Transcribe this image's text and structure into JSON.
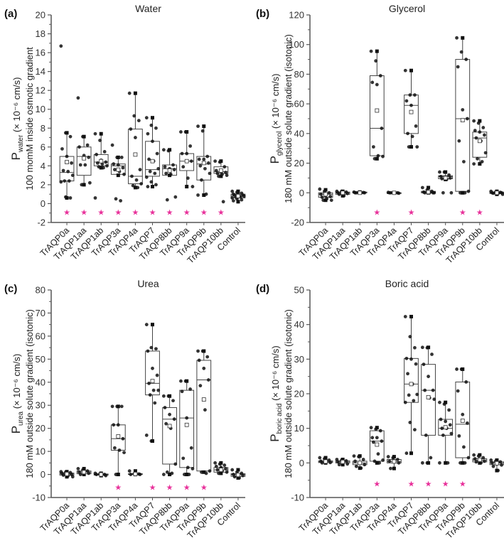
{
  "chart_data": [
    {
      "type": "box",
      "panel": "(a)",
      "title": "Water",
      "ylabel_main": "P",
      "ylabel_sub": "water",
      "ylabel_rest": " (× 10⁻⁶ cm/s)",
      "ylabel_line2": "100 momM inside osmotic gradient",
      "ylim": [
        -2,
        20
      ],
      "yticks": [
        -2,
        0,
        2,
        4,
        6,
        8,
        10,
        12,
        14,
        16,
        18,
        20
      ],
      "categories": [
        "TrAQP0a",
        "TrAQP1aa",
        "TrAQP1ab",
        "TrAQP3a",
        "TrAQP4a",
        "TrAQP7",
        "TrAQP8bb",
        "TrAQP9a",
        "TrAQP9b",
        "TrAQP10bb",
        "Control"
      ],
      "significant": [
        true,
        true,
        true,
        true,
        true,
        true,
        true,
        true,
        true,
        true,
        false
      ],
      "star_y": -0.9,
      "boxes": [
        {
          "min": 0.6,
          "q1": 2.4,
          "median": 3.3,
          "q3": 5.0,
          "max": 7.5,
          "mean": 4.4,
          "points": [
            16.7,
            7.5,
            7.1,
            5.8,
            5.0,
            4.3,
            3.5,
            3.4,
            3.0,
            2.4,
            2.4,
            2.3,
            0.7,
            0.6
          ]
        },
        {
          "min": 2.0,
          "q1": 3.0,
          "median": 5.0,
          "q3": 6.0,
          "max": 7.1,
          "mean": 4.8,
          "points": [
            11.2,
            7.1,
            6.2,
            6.0,
            5.1,
            4.9,
            4.1,
            4.1,
            2.2,
            2.0
          ]
        },
        {
          "min": 3.8,
          "q1": 4.0,
          "median": 4.4,
          "q3": 5.2,
          "max": 7.4,
          "mean": 4.5,
          "points": [
            7.4,
            6.7,
            5.5,
            5.2,
            4.6,
            4.4,
            4.3,
            4.2,
            4.0,
            3.9,
            3.8,
            0.6
          ]
        },
        {
          "min": 3.0,
          "q1": 3.1,
          "median": 4.0,
          "q3": 4.2,
          "max": 4.9,
          "mean": 3.6,
          "points": [
            6.2,
            4.9,
            4.9,
            4.2,
            4.1,
            3.8,
            3.6,
            3.4,
            3.1,
            0.5,
            0.3
          ]
        },
        {
          "min": 1.7,
          "q1": 2.1,
          "median": 2.9,
          "q3": 7.9,
          "max": 11.7,
          "mean": 5.2,
          "points": [
            11.7,
            9.3,
            8.8,
            7.9,
            7.0,
            3.6,
            2.9,
            2.5,
            2.1,
            1.9,
            1.7
          ]
        },
        {
          "min": 1.8,
          "q1": 2.9,
          "median": 3.6,
          "q3": 6.6,
          "max": 9.1,
          "mean": 4.5,
          "points": [
            9.1,
            8.3,
            8.0,
            7.4,
            6.6,
            5.3,
            4.7,
            4.5,
            3.7,
            3.4,
            3.2,
            2.8,
            2.3,
            2.0,
            1.8
          ]
        },
        {
          "min": 3.0,
          "q1": 3.0,
          "median": 3.7,
          "q3": 4.1,
          "max": 5.7,
          "mean": 3.5,
          "points": [
            5.7,
            5.6,
            4.1,
            3.9,
            3.7,
            3.6,
            3.2,
            3.1,
            0.7,
            0.4
          ]
        },
        {
          "min": 1.8,
          "q1": 3.5,
          "median": 4.5,
          "q3": 5.3,
          "max": 7.6,
          "mean": 4.5,
          "points": [
            7.6,
            7.6,
            6.1,
            5.3,
            5.3,
            4.5,
            3.9,
            2.7,
            1.8
          ]
        },
        {
          "min": 0.9,
          "q1": 2.5,
          "median": 4.2,
          "q3": 5.0,
          "max": 8.2,
          "mean": 4.3,
          "points": [
            8.2,
            7.7,
            5.0,
            4.7,
            4.7,
            4.3,
            4.0,
            3.7,
            3.2,
            2.5,
            1.0,
            0.9
          ]
        },
        {
          "min": 2.9,
          "q1": 3.2,
          "median": 3.4,
          "q3": 3.9,
          "max": 4.5,
          "mean": 3.5,
          "points": [
            4.5,
            4.4,
            3.9,
            3.5,
            3.4,
            3.3,
            3.2,
            3.1,
            3.0,
            2.9,
            0.2
          ]
        },
        {
          "min": 0.2,
          "q1": 0.6,
          "median": 0.8,
          "q3": 1.0,
          "max": 1.3,
          "mean": 0.8,
          "points": [
            1.3,
            1.2,
            1.1,
            1.0,
            1.0,
            0.9,
            0.9,
            0.8,
            0.8,
            0.7,
            0.7,
            0.6,
            0.5,
            0.4,
            0.3,
            0.2
          ]
        }
      ]
    },
    {
      "type": "box",
      "panel": "(b)",
      "title": "Glycerol",
      "ylabel_main": "P",
      "ylabel_sub": "glycerol",
      "ylabel_rest": " (× 10⁻⁶ cm/s)",
      "ylabel_line2": "180 mM outside solute gradient (isotonic)",
      "ylim": [
        -20,
        120
      ],
      "yticks": [
        -20,
        0,
        20,
        40,
        60,
        80,
        100,
        120
      ],
      "categories": [
        "TrAQP0a",
        "TrAQP1aa",
        "TrAQP1ab",
        "TrAQP3a",
        "TrAQP4a",
        "TrAQP7",
        "TrAQP8bb",
        "TrAQP9a",
        "TrAQP9b",
        "TrAQP10bb",
        "Control"
      ],
      "significant": [
        false,
        false,
        false,
        true,
        false,
        true,
        false,
        false,
        true,
        true,
        false
      ],
      "star_y": -13,
      "boxes": [
        {
          "min": -5,
          "q1": -3,
          "median": -1,
          "q3": 0,
          "max": 2,
          "mean": -1,
          "points": [
            2.5,
            1,
            0,
            -1,
            -2,
            -2.5,
            -3,
            -4,
            -5,
            -5
          ]
        },
        {
          "min": -2,
          "q1": -1,
          "median": 0,
          "q3": 0.5,
          "max": 1,
          "mean": 0,
          "points": [
            1,
            1,
            0.5,
            0,
            0,
            -0.5,
            -1,
            -2
          ]
        },
        {
          "min": 0,
          "q1": 0,
          "median": 0,
          "q3": 0.5,
          "max": 0.5,
          "mean": 0,
          "points": [
            0.5,
            0.3,
            0.2,
            0,
            0,
            0,
            0,
            0
          ]
        },
        {
          "min": 23,
          "q1": 25,
          "median": 43.5,
          "q3": 79,
          "max": 95.5,
          "mean": 55.5,
          "points": [
            95.5,
            89,
            79,
            74.5,
            73,
            43.5,
            31,
            25,
            24.5,
            23
          ]
        },
        {
          "min": 0,
          "q1": 0,
          "median": 0,
          "q3": 0,
          "max": 0,
          "mean": 0,
          "points": [
            0.3,
            0.2,
            0,
            0,
            -0.2,
            -0.3,
            0,
            0
          ]
        },
        {
          "min": 31,
          "q1": 40,
          "median": 59,
          "q3": 66,
          "max": 82.5,
          "mean": 54.5,
          "points": [
            82.5,
            66,
            66,
            62,
            59,
            45,
            40,
            38,
            31,
            31
          ]
        },
        {
          "min": 0,
          "q1": 0,
          "median": 0.5,
          "q3": 1,
          "max": 3.5,
          "mean": 0.5,
          "points": [
            3.5,
            2,
            1,
            0.5,
            0,
            0,
            0,
            0,
            0
          ]
        },
        {
          "min": 9,
          "q1": 9.5,
          "median": 11,
          "q3": 11.5,
          "max": 14,
          "mean": 10,
          "points": [
            14,
            14,
            12,
            11,
            10.5,
            10,
            9.5,
            9,
            0,
            0
          ]
        },
        {
          "min": 0,
          "q1": 1,
          "median": 50,
          "q3": 90,
          "max": 104.5,
          "mean": 49,
          "points": [
            104.5,
            95,
            90,
            85,
            56,
            50,
            35,
            21,
            1,
            0,
            0
          ]
        },
        {
          "min": 19.5,
          "q1": 24,
          "median": 37,
          "q3": 41,
          "max": 48.5,
          "mean": 35,
          "points": [
            48.5,
            47,
            44,
            42,
            41,
            39,
            37,
            35,
            27,
            23,
            21,
            19.5
          ]
        },
        {
          "min": -1,
          "q1": -0.5,
          "median": 0,
          "q3": 0.5,
          "max": 1,
          "mean": 0,
          "points": [
            1,
            0.5,
            0.3,
            0,
            0,
            0,
            -0.3,
            -0.5,
            -1
          ]
        }
      ]
    },
    {
      "type": "box",
      "panel": "(c)",
      "title": "Urea",
      "ylabel_main": "P",
      "ylabel_sub": "urea",
      "ylabel_rest": " (× 10⁻⁶ cm/s)",
      "ylabel_line2": "180 mM outside solute gradient (isotonic)",
      "ylim": [
        -10,
        80
      ],
      "yticks": [
        -10,
        0,
        10,
        20,
        30,
        40,
        50,
        60,
        70,
        80
      ],
      "categories": [
        "TrAQP0a",
        "TrAQP1aa",
        "TrAQP1ab",
        "TrAQP3a",
        "TrAQP4a",
        "TrAQP7",
        "TrAQP8bb",
        "TrAQP9a",
        "TrAQP9b",
        "TrAQP10bb",
        "Control"
      ],
      "significant": [
        false,
        false,
        false,
        true,
        false,
        true,
        true,
        true,
        true,
        false,
        false
      ],
      "star_y": -5.5,
      "boxes": [
        {
          "min": -1,
          "q1": -0.3,
          "median": 0.2,
          "q3": 0.6,
          "max": 1.2,
          "mean": 0.2,
          "points": [
            1.2,
            1,
            0.8,
            0.5,
            0.3,
            0,
            -0.3,
            -0.6,
            -1
          ]
        },
        {
          "min": 0,
          "q1": 0.3,
          "median": 1,
          "q3": 1.5,
          "max": 2.5,
          "mean": 1,
          "points": [
            2.5,
            2,
            1.5,
            1,
            0.8,
            0.5,
            0
          ]
        },
        {
          "min": -0.5,
          "q1": -0.3,
          "median": 0,
          "q3": 0.2,
          "max": 0.5,
          "mean": 0,
          "points": [
            0.5,
            0.3,
            0,
            0,
            -0.3,
            -0.5
          ]
        },
        {
          "min": 0,
          "q1": 10.5,
          "median": 15.5,
          "q3": 21.5,
          "max": 29.5,
          "mean": 16.5,
          "points": [
            29.5,
            29.5,
            29.5,
            21.5,
            21.5,
            15.5,
            11.5,
            10.5,
            9.5,
            0
          ]
        },
        {
          "min": 0,
          "q1": 0,
          "median": 0.2,
          "q3": 0.3,
          "max": 1.5,
          "mean": 0.2,
          "points": [
            1.5,
            0.3,
            0.2,
            0,
            0,
            0
          ]
        },
        {
          "min": 14.5,
          "q1": 34.5,
          "median": 39.5,
          "q3": 53.5,
          "max": 65,
          "mean": 40.5,
          "points": [
            65,
            55,
            54.5,
            53.5,
            46,
            43,
            39.5,
            36.5,
            36.5,
            34.5,
            31,
            17,
            14.5
          ]
        },
        {
          "min": 0,
          "q1": 4.5,
          "median": 24,
          "q3": 29,
          "max": 34,
          "mean": 21,
          "points": [
            34,
            34,
            32,
            29,
            26,
            24,
            22,
            20,
            4.5,
            1,
            0.5,
            0
          ]
        },
        {
          "min": 0,
          "q1": 3,
          "median": 24.5,
          "q3": 36.5,
          "max": 40.5,
          "mean": 21.5,
          "points": [
            40.5,
            40.5,
            37,
            36,
            24.5,
            11.5,
            7,
            3,
            2.5,
            0,
            0
          ]
        },
        {
          "min": 1,
          "q1": 1.5,
          "median": 41,
          "q3": 49.5,
          "max": 53.5,
          "mean": 32.5,
          "points": [
            53.5,
            53.5,
            51,
            49.5,
            46,
            41,
            38.5,
            28,
            1.5,
            1,
            0.5
          ]
        },
        {
          "min": 0.5,
          "q1": 1,
          "median": 2,
          "q3": 3,
          "max": 5,
          "mean": 2,
          "points": [
            5,
            4.5,
            4,
            3.5,
            3,
            2.5,
            2,
            1.5,
            1,
            0.5
          ]
        },
        {
          "min": -1.5,
          "q1": -0.8,
          "median": 0,
          "q3": 0.3,
          "max": 2,
          "mean": -0.2,
          "points": [
            2,
            1,
            0.5,
            0,
            -0.3,
            -0.5,
            -1,
            -1.5
          ]
        }
      ]
    },
    {
      "type": "box",
      "panel": "(d)",
      "title": "Boric acid",
      "ylabel_main": "P",
      "ylabel_sub": "boric acid",
      "ylabel_rest": " (× 10⁻⁶ cm/s)",
      "ylabel_line2": "180 mM outside solute gradient (isotonic)",
      "ylim": [
        -10,
        50
      ],
      "yticks": [
        -10,
        0,
        10,
        20,
        30,
        40,
        50
      ],
      "categories": [
        "TrAQP0a",
        "TrAQP1aa",
        "TrAQP1ab",
        "TrAQP3a",
        "TrAQP4a",
        "TrAQP7",
        "TrAQP8bb",
        "TrAQP9a",
        "TrAQP9b",
        "TrAQP10bb",
        "Control"
      ],
      "significant": [
        false,
        false,
        false,
        true,
        false,
        true,
        true,
        true,
        true,
        false,
        false
      ],
      "star_y": -6,
      "boxes": [
        {
          "min": 0,
          "q1": 0.1,
          "median": 0.3,
          "q3": 0.6,
          "max": 1.5,
          "mean": 0.4,
          "points": [
            1.5,
            1.2,
            0.8,
            0.5,
            0.3,
            0.1,
            0
          ]
        },
        {
          "min": -0.5,
          "q1": 0,
          "median": 0.3,
          "q3": 0.6,
          "max": 1,
          "mean": 0.3,
          "points": [
            1,
            0.8,
            0.6,
            0.3,
            0,
            -0.3,
            -0.5
          ]
        },
        {
          "min": -1.5,
          "q1": -0.5,
          "median": 0,
          "q3": 0.5,
          "max": 2,
          "mean": 0,
          "points": [
            2,
            1.8,
            1,
            0.5,
            0,
            -0.5,
            -1,
            -1.5
          ]
        },
        {
          "min": 0,
          "q1": 0.5,
          "median": 6.3,
          "q3": 9.3,
          "max": 10.2,
          "mean": 5.3,
          "points": [
            10.2,
            9.8,
            9.3,
            7.3,
            7.3,
            6.3,
            6,
            2.6,
            0.8,
            0.5,
            0
          ]
        },
        {
          "min": -1.6,
          "q1": 0,
          "median": 0.4,
          "q3": 1,
          "max": 1.8,
          "mean": 0.4,
          "points": [
            1.8,
            1.5,
            1,
            0.5,
            0.3,
            0,
            -1.6
          ]
        },
        {
          "min": 2.8,
          "q1": 17.5,
          "median": 22.8,
          "q3": 30.2,
          "max": 42.3,
          "mean": 22.8,
          "points": [
            42.3,
            36.5,
            33.3,
            30.2,
            30,
            28.6,
            25.8,
            22.8,
            19.8,
            19.6,
            18,
            17.5,
            11.7,
            9.6,
            2.8
          ]
        },
        {
          "min": 0,
          "q1": 8,
          "median": 21,
          "q3": 28.5,
          "max": 33.4,
          "mean": 19,
          "points": [
            33.4,
            33.3,
            31.4,
            28.5,
            25,
            21,
            21,
            18.8,
            18.4,
            8,
            1.5,
            0,
            0
          ]
        },
        {
          "min": 0,
          "q1": 8,
          "median": 10,
          "q3": 12.6,
          "max": 17.5,
          "mean": 10.3,
          "points": [
            17.5,
            17,
            15.3,
            12.6,
            12,
            11,
            10,
            10,
            8.5,
            8,
            0,
            0
          ]
        },
        {
          "min": 0,
          "q1": 1.5,
          "median": 11.2,
          "q3": 23.4,
          "max": 27.1,
          "mean": 12.2,
          "points": [
            27.1,
            27.1,
            23.4,
            20.8,
            14,
            11.5,
            7.8,
            4.6,
            1.5,
            0,
            0
          ]
        },
        {
          "min": 0,
          "q1": 0.3,
          "median": 0.8,
          "q3": 1.2,
          "max": 2.3,
          "mean": 0.9,
          "points": [
            2.3,
            2,
            1.5,
            1.2,
            0.8,
            0.5,
            0.3,
            0
          ]
        },
        {
          "min": -2.2,
          "q1": -0.5,
          "median": 0,
          "q3": 0.3,
          "max": 0.8,
          "mean": -0.1,
          "points": [
            0.8,
            0.5,
            0.3,
            0,
            -0.3,
            -0.6,
            -1,
            -2.2
          ]
        }
      ]
    }
  ],
  "colors": {
    "star": "#e8309a",
    "axis": "#555555",
    "box": "#444444",
    "point": "#111111"
  },
  "star_symbol": "★",
  "mean_marker": "open-square"
}
